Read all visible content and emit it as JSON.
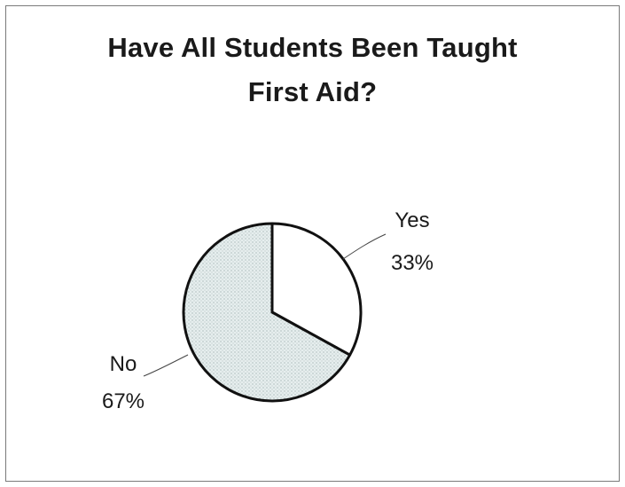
{
  "chart_data": {
    "type": "pie",
    "title_lines": [
      "Have All Students Been Taught",
      "First Aid?"
    ],
    "slices": [
      {
        "label": "Yes",
        "value": 33,
        "value_label": "33%",
        "fill": "#ffffff"
      },
      {
        "label": "No",
        "value": 67,
        "value_label": "67%",
        "fill": "#e6eeee"
      }
    ],
    "start": "12 o'clock, clockwise",
    "legend": "none"
  },
  "colors": {
    "outline": "#111111",
    "text": "#1a1a1a",
    "no_fill": "#e6eeee",
    "yes_fill": "#ffffff"
  }
}
